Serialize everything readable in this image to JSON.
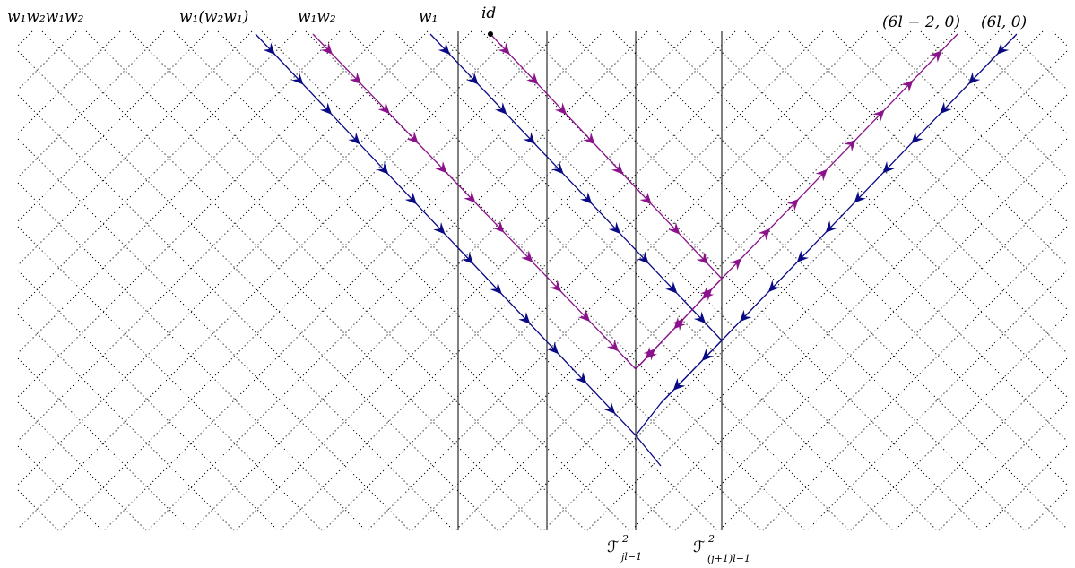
{
  "labels": {
    "top": [
      "w₁w₂w₁w₂",
      "w₁(w₂w₁)",
      "w₁w₂",
      "w₁",
      "id"
    ],
    "right": [
      "(6l − 2, 0)",
      "(6l, 0)"
    ],
    "bottom": [
      {
        "main": "ℱ",
        "sup": "2",
        "sub": "jl−1"
      },
      {
        "main": "ℱ",
        "sup": "2",
        "sub": "(j+1)l−1"
      }
    ]
  },
  "colors": {
    "blue": "#0a0a85",
    "purple": "#8b128b",
    "grid": "#000000"
  },
  "paths": [
    {
      "color": "purple",
      "name": "path-from-id"
    },
    {
      "color": "blue",
      "name": "path-from-w1"
    },
    {
      "color": "purple",
      "name": "path-from-w1w2"
    },
    {
      "color": "blue",
      "name": "path-from-w1w2w1"
    },
    {
      "color": "purple",
      "name": "path-from-6l-2"
    },
    {
      "color": "blue",
      "name": "path-from-6l"
    }
  ]
}
